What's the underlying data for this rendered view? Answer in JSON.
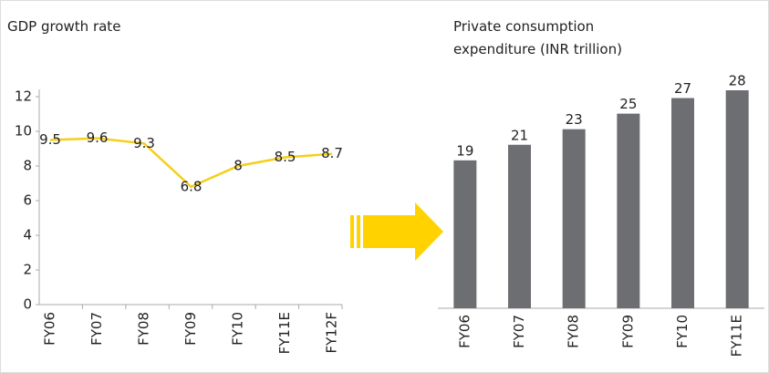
{
  "chart_data": [
    {
      "type": "line",
      "title": "GDP growth rate",
      "categories": [
        "FY06",
        "FY07",
        "FY08",
        "FY09",
        "FY10",
        "FY11E",
        "FY12F"
      ],
      "values": [
        9.5,
        9.6,
        9.3,
        6.8,
        8,
        8.5,
        8.7
      ],
      "color": "#f5cf1b",
      "ylim": [
        0,
        12
      ],
      "yticks": [
        0,
        2,
        4,
        6,
        8,
        10,
        12
      ]
    },
    {
      "type": "bar",
      "title": [
        "Private consumption",
        "expenditure (INR trillion)"
      ],
      "categories": [
        "FY06",
        "FY07",
        "FY08",
        "FY09",
        "FY10",
        "FY11E"
      ],
      "values": [
        19,
        21,
        23,
        25,
        27,
        28
      ],
      "color": "#6d6e71"
    }
  ]
}
